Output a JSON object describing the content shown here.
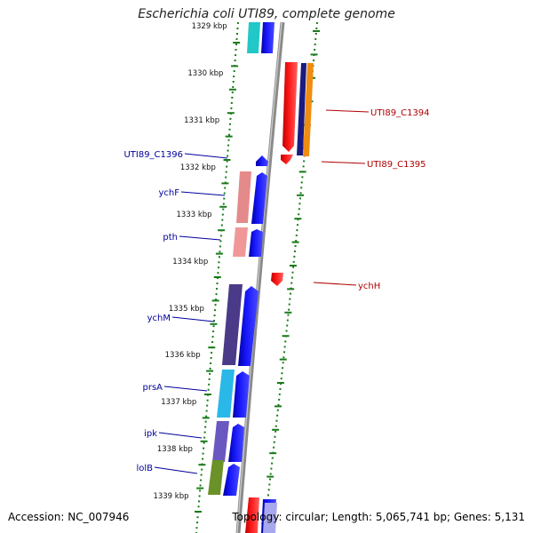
{
  "title": "Escherichia coli UTI89, complete genome",
  "accession": "Accession: NC_007946",
  "summary": "Topology: circular; Length: 5,065,741 bp; Genes: 5,131",
  "ruler": [
    {
      "label": "1329 kbp"
    },
    {
      "label": "1330 kbp"
    },
    {
      "label": "1331 kbp"
    },
    {
      "label": "1332 kbp"
    },
    {
      "label": "1333 kbp"
    },
    {
      "label": "1334 kbp"
    },
    {
      "label": "1335 kbp"
    },
    {
      "label": "1336 kbp"
    },
    {
      "label": "1337 kbp"
    },
    {
      "label": "1338 kbp"
    },
    {
      "label": "1339 kbp"
    }
  ],
  "genes_left": [
    {
      "label": "UTI89_C1396"
    },
    {
      "label": "ychF"
    },
    {
      "label": "pth"
    },
    {
      "label": "ychM"
    },
    {
      "label": "prsA"
    },
    {
      "label": "ipk"
    },
    {
      "label": "lolB"
    }
  ],
  "genes_right": [
    {
      "label": "UTI89_C1394"
    },
    {
      "label": "UTI89_C1395"
    },
    {
      "label": "ychH"
    }
  ],
  "colors": {
    "left_label": "#00009c",
    "right_label": "#b00000",
    "forward_cds": "#1010ff",
    "reverse_cds": "#ff1010",
    "backbone": "#8a8a8a",
    "ruler_ticks": "#1a7a1a"
  }
}
